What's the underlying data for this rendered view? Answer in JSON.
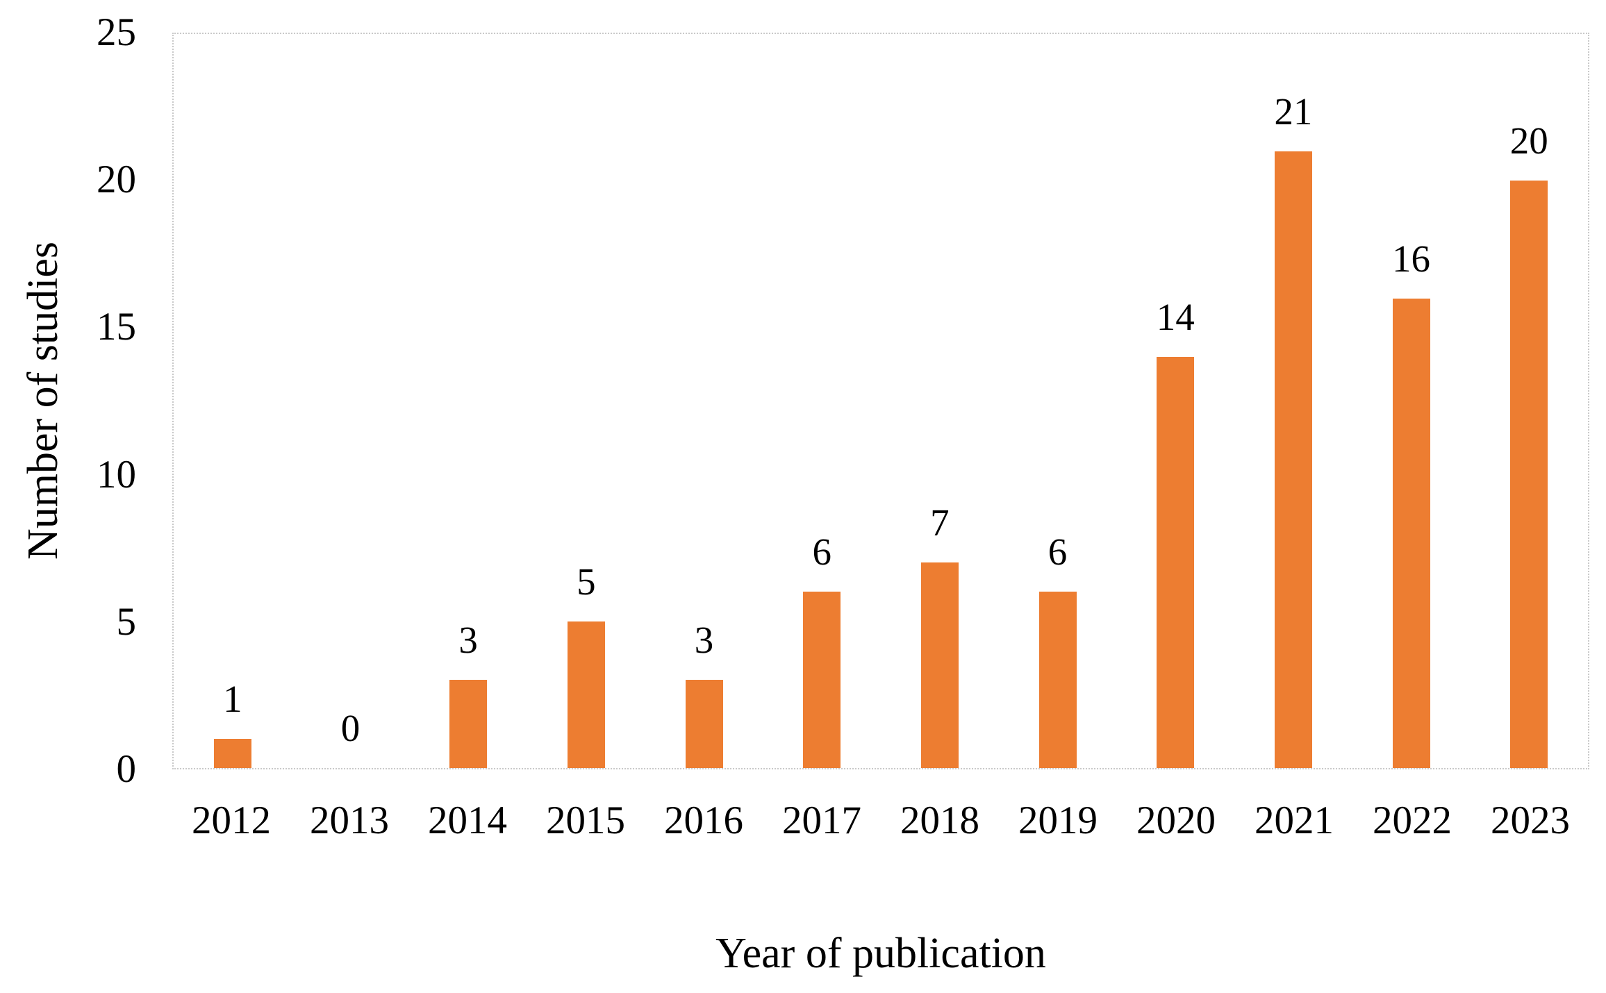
{
  "figure": {
    "background_color": "#ffffff",
    "text_color": "#000000"
  },
  "chart_data": {
    "type": "bar",
    "title": "",
    "categories": [
      "2012",
      "2013",
      "2014",
      "2015",
      "2016",
      "2017",
      "2018",
      "2019",
      "2020",
      "2021",
      "2022",
      "2023"
    ],
    "values": [
      1,
      0,
      3,
      5,
      3,
      6,
      7,
      6,
      14,
      21,
      16,
      20
    ],
    "data_labels": [
      1,
      0,
      3,
      5,
      3,
      6,
      7,
      6,
      14,
      21,
      16,
      20
    ],
    "xlabel": "Year of publication",
    "ylabel": "Number of studies",
    "ylim": [
      0,
      25
    ],
    "yticks": [
      0,
      5,
      10,
      15,
      20,
      25
    ],
    "grid": false,
    "legend": false,
    "bar_color": "#ED7D31",
    "axis_border_color": "#c9c9c9",
    "show_data_labels": true
  }
}
